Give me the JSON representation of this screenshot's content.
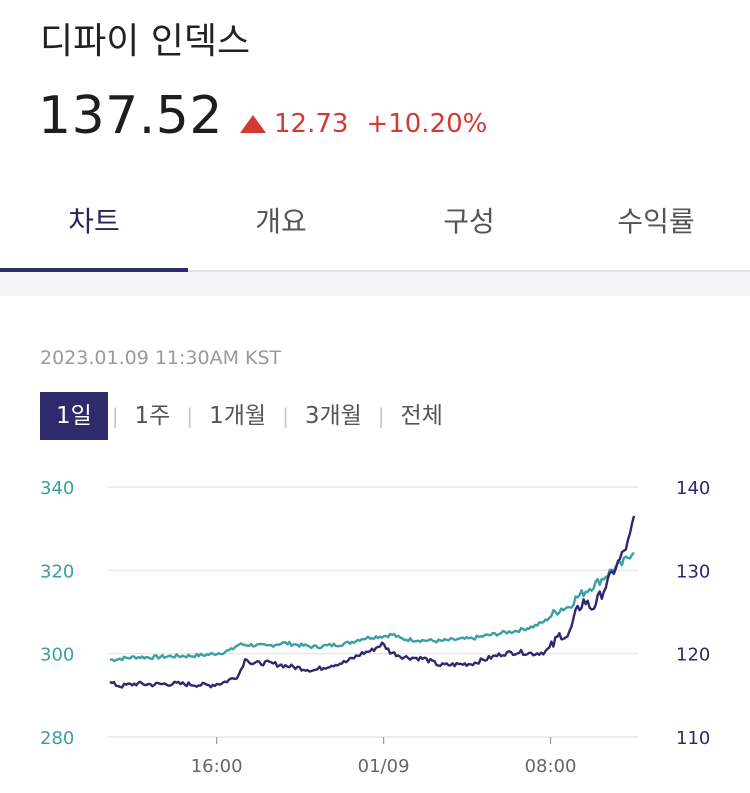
{
  "header": {
    "title": "디파이 인덱스",
    "price": "137.52",
    "change": "12.73",
    "change_pct": "+10.20%",
    "change_color": "#d23a33"
  },
  "tabs": [
    {
      "label": "차트",
      "active": true
    },
    {
      "label": "개요",
      "active": false
    },
    {
      "label": "구성",
      "active": false
    },
    {
      "label": "수익률",
      "active": false
    }
  ],
  "timestamp": "2023.01.09 11:30AM KST",
  "ranges": [
    {
      "label": "1일",
      "active": true
    },
    {
      "label": "1주",
      "active": false
    },
    {
      "label": "1개월",
      "active": false
    },
    {
      "label": "3개월",
      "active": false
    },
    {
      "label": "전체",
      "active": false
    }
  ],
  "chart_data": {
    "type": "line",
    "x_ticks": [
      "16:00",
      "01/09",
      "08:00"
    ],
    "x_tick_positions": [
      0.205,
      0.52,
      0.835
    ],
    "y_left": {
      "ticks": [
        280,
        300,
        320,
        340
      ],
      "range": [
        280,
        340
      ],
      "color": "#3a9fa2"
    },
    "y_right": {
      "ticks": [
        110,
        120,
        130,
        140
      ],
      "range": [
        110,
        140
      ],
      "color": "#2d2870"
    },
    "grid": true,
    "series": [
      {
        "axis": "left",
        "color": "#3a9fa2",
        "points": [
          [
            0,
            298.5
          ],
          [
            0.02,
            298.8
          ],
          [
            0.05,
            299.2
          ],
          [
            0.08,
            299.1
          ],
          [
            0.12,
            299.4
          ],
          [
            0.16,
            299.5
          ],
          [
            0.19,
            299.8
          ],
          [
            0.215,
            300.3
          ],
          [
            0.23,
            300.8
          ],
          [
            0.245,
            302.2
          ],
          [
            0.27,
            302.1
          ],
          [
            0.3,
            301.8
          ],
          [
            0.33,
            302.6
          ],
          [
            0.36,
            302.1
          ],
          [
            0.39,
            301.6
          ],
          [
            0.42,
            302.0
          ],
          [
            0.45,
            302.4
          ],
          [
            0.48,
            303.6
          ],
          [
            0.5,
            304.0
          ],
          [
            0.52,
            304.2
          ],
          [
            0.54,
            304.6
          ],
          [
            0.555,
            303.6
          ],
          [
            0.57,
            303.4
          ],
          [
            0.6,
            303.2
          ],
          [
            0.63,
            303.0
          ],
          [
            0.66,
            303.4
          ],
          [
            0.69,
            303.6
          ],
          [
            0.72,
            304.4
          ],
          [
            0.75,
            305.0
          ],
          [
            0.78,
            305.6
          ],
          [
            0.81,
            306.6
          ],
          [
            0.83,
            307.8
          ],
          [
            0.845,
            309.5
          ],
          [
            0.86,
            310.8
          ],
          [
            0.875,
            311.2
          ],
          [
            0.89,
            313.4
          ],
          [
            0.905,
            314.8
          ],
          [
            0.92,
            316.2
          ],
          [
            0.94,
            318.0
          ],
          [
            0.96,
            320.4
          ],
          [
            0.975,
            321.2
          ],
          [
            0.99,
            323.4
          ],
          [
            1.0,
            325.0
          ]
        ]
      },
      {
        "axis": "right",
        "color": "#2d2870",
        "points": [
          [
            0,
            116.5
          ],
          [
            0.02,
            116.1
          ],
          [
            0.05,
            116.4
          ],
          [
            0.08,
            116.3
          ],
          [
            0.12,
            116.4
          ],
          [
            0.16,
            116.3
          ],
          [
            0.19,
            116.2
          ],
          [
            0.215,
            116.5
          ],
          [
            0.23,
            116.9
          ],
          [
            0.245,
            117.4
          ],
          [
            0.26,
            119.6
          ],
          [
            0.27,
            118.8
          ],
          [
            0.3,
            118.9
          ],
          [
            0.33,
            118.6
          ],
          [
            0.36,
            118.3
          ],
          [
            0.39,
            118.0
          ],
          [
            0.42,
            118.6
          ],
          [
            0.45,
            119.0
          ],
          [
            0.48,
            120.0
          ],
          [
            0.5,
            120.4
          ],
          [
            0.52,
            121.2
          ],
          [
            0.535,
            120.2
          ],
          [
            0.56,
            119.6
          ],
          [
            0.6,
            119.4
          ],
          [
            0.63,
            118.6
          ],
          [
            0.66,
            118.7
          ],
          [
            0.69,
            118.8
          ],
          [
            0.72,
            119.4
          ],
          [
            0.75,
            120.0
          ],
          [
            0.78,
            120.2
          ],
          [
            0.81,
            120.0
          ],
          [
            0.83,
            120.2
          ],
          [
            0.845,
            121.0
          ],
          [
            0.86,
            122.4
          ],
          [
            0.875,
            122.0
          ],
          [
            0.89,
            125.0
          ],
          [
            0.905,
            126.4
          ],
          [
            0.92,
            125.4
          ],
          [
            0.94,
            127.4
          ],
          [
            0.96,
            129.8
          ],
          [
            0.975,
            131.5
          ],
          [
            0.99,
            133.5
          ],
          [
            1.0,
            136.2
          ]
        ]
      }
    ]
  }
}
